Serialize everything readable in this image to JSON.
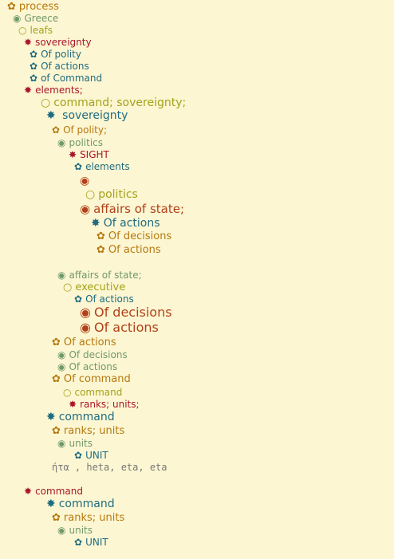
{
  "icons": {
    "flower": "✿",
    "target": "◉",
    "circle": "○",
    "star": "✸"
  },
  "colors": {
    "background": "#fdf6d2",
    "gold": "#b5790f",
    "sage": "#6f9a6a",
    "olive": "#a3a21a",
    "crimson": "#a8162a",
    "teal": "#1f6c80",
    "rust": "#b1411a",
    "gray": "#777777"
  },
  "tree": [
    {
      "name": "node-process",
      "icon": "flower",
      "label": "process",
      "color": "gold"
    },
    {
      "name": "node-greece",
      "icon": "target",
      "label": "Greece",
      "color": "sage"
    },
    {
      "name": "node-leafs",
      "icon": "circle",
      "label": "leafs",
      "color": "olive"
    },
    {
      "name": "node-sovereignty",
      "icon": "star",
      "label": "sovereignty",
      "color": "crimson"
    },
    {
      "name": "node-of-polity",
      "icon": "flower",
      "label": "Of polity",
      "color": "teal"
    },
    {
      "name": "node-of-actions",
      "icon": "flower",
      "label": "Of actions",
      "color": "teal"
    },
    {
      "name": "node-of-command",
      "icon": "flower",
      "label": "of Command",
      "color": "teal"
    },
    {
      "name": "node-elements",
      "icon": "star",
      "label": "elements;",
      "color": "crimson"
    },
    {
      "name": "node-command-sovereignty",
      "icon": "circle",
      "label": "command;  sovereignty;",
      "color": "olive"
    },
    {
      "name": "node-sovereignty-2",
      "icon": "star",
      "label": " sovereignty",
      "color": "teal"
    },
    {
      "name": "node-of-polity-2",
      "icon": "flower",
      "label": "Of polity;",
      "color": "gold"
    },
    {
      "name": "node-politics",
      "icon": "target",
      "label": "politics",
      "color": "sage"
    },
    {
      "name": "node-sight",
      "icon": "star",
      "label": "SIGHT",
      "color": "crimson"
    },
    {
      "name": "node-elements-2",
      "icon": "flower",
      "label": "elements",
      "color": "teal"
    },
    {
      "name": "node-empty-target",
      "icon": "target",
      "label": "",
      "color": "rust"
    },
    {
      "name": "node-politics-2",
      "icon": "circle",
      "label": "politics",
      "color": "olive"
    },
    {
      "name": "node-affairs-of-state",
      "icon": "target",
      "label": "affairs of state;",
      "color": "rust"
    },
    {
      "name": "node-of-actions-2",
      "icon": "star",
      "label": "Of actions",
      "color": "teal"
    },
    {
      "name": "node-of-decisions",
      "icon": "flower",
      "label": "Of decisions",
      "color": "gold"
    },
    {
      "name": "node-of-actions-3",
      "icon": "flower",
      "label": "Of actions",
      "color": "gold"
    },
    {
      "name": "node-affairs-of-state-2",
      "icon": "target",
      "label": "affairs of state;",
      "color": "sage"
    },
    {
      "name": "node-executive",
      "icon": "circle",
      "label": "executive",
      "color": "olive"
    },
    {
      "name": "node-of-actions-4",
      "icon": "flower",
      "label": "Of actions",
      "color": "teal"
    },
    {
      "name": "node-of-decisions-2",
      "icon": "target",
      "label": "Of decisions",
      "color": "rust"
    },
    {
      "name": "node-of-actions-5",
      "icon": "target",
      "label": "Of actions",
      "color": "rust"
    },
    {
      "name": "node-of-actions-6",
      "icon": "flower",
      "label": "Of actions",
      "color": "gold"
    },
    {
      "name": "node-of-decisions-3",
      "icon": "target",
      "label": "Of decisions",
      "color": "sage"
    },
    {
      "name": "node-of-actions-7",
      "icon": "target",
      "label": "Of actions",
      "color": "sage"
    },
    {
      "name": "node-of-command-2",
      "icon": "flower",
      "label": "Of command",
      "color": "gold"
    },
    {
      "name": "node-command",
      "icon": "circle",
      "label": "command",
      "color": "olive"
    },
    {
      "name": "node-ranks-units",
      "icon": "star",
      "label": "ranks; units;",
      "color": "crimson"
    },
    {
      "name": "node-command-2",
      "icon": "star",
      "label": "command",
      "color": "teal"
    },
    {
      "name": "node-ranks-units-2",
      "icon": "flower",
      "label": "ranks; units",
      "color": "gold"
    },
    {
      "name": "node-units",
      "icon": "target",
      "label": "units",
      "color": "sage"
    },
    {
      "name": "node-unit",
      "icon": "flower",
      "label": "UNIT",
      "color": "teal"
    },
    {
      "name": "node-heta-note",
      "icon": "",
      "label": "ήτα , heta, eta, eta",
      "color": "gray"
    },
    {
      "name": "node-command-3",
      "icon": "star",
      "label": "command",
      "color": "crimson"
    },
    {
      "name": "node-command-4",
      "icon": "star",
      "label": "command",
      "color": "teal"
    },
    {
      "name": "node-ranks-units-3",
      "icon": "flower",
      "label": "ranks; units",
      "color": "gold"
    },
    {
      "name": "node-units-2",
      "icon": "target",
      "label": "units",
      "color": "sage"
    },
    {
      "name": "node-unit-2",
      "icon": "flower",
      "label": "UNIT",
      "color": "teal"
    }
  ]
}
